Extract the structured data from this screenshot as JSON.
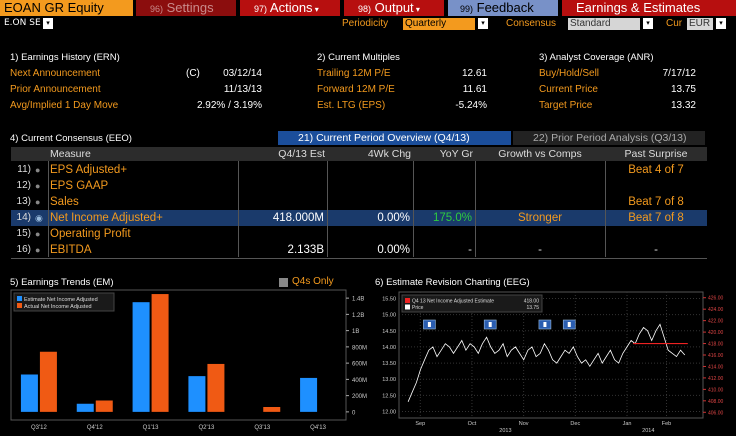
{
  "topbar": {
    "ticker": "EOAN GR Equity",
    "settings_num": "96)",
    "settings": "Settings",
    "actions_num": "97)",
    "actions": "Actions",
    "output_num": "98)",
    "output": "Output",
    "feedback_num": "99)",
    "feedback": "Feedback",
    "earnings": "Earnings & Estimates"
  },
  "row2": {
    "security": "E.ON SE",
    "periodicity_label": "Periodicity",
    "periodicity_value": "Quarterly",
    "consensus_label": "Consensus",
    "consensus_value": "Standard",
    "cur_label": "Cur",
    "cur_value": "EUR"
  },
  "ern": {
    "title": "1) Earnings History (ERN)",
    "rows": [
      {
        "label": "Next Announcement",
        "mark": "(C)",
        "value": "03/12/14"
      },
      {
        "label": "Prior Announcement",
        "mark": "",
        "value": "11/13/13"
      },
      {
        "label": "Avg/Implied 1 Day Move",
        "mark": "",
        "value": "2.92% / 3.19%"
      }
    ]
  },
  "multiples": {
    "title": "2) Current Multiples",
    "rows": [
      {
        "label": "Trailing 12M P/E",
        "value": "12.61"
      },
      {
        "label": "Forward 12M P/E",
        "value": "11.61"
      },
      {
        "label": "Est. LTG (EPS)",
        "value": "-5.24%"
      }
    ]
  },
  "anr": {
    "title": "3) Analyst Coverage (ANR)",
    "rows": [
      {
        "label": "Buy/Hold/Sell",
        "value": "7/17/12"
      },
      {
        "label": "Current Price",
        "value": "13.75"
      },
      {
        "label": "Target Price",
        "value": "13.32"
      }
    ]
  },
  "consensus": {
    "title": "4) Current Consensus (EEO)",
    "tab_active": "21) Current Period Overview (Q4/13)",
    "tab_inactive": "22) Prior Period Analysis (Q3/13)",
    "headers": [
      "Measure",
      "Q4/13 Est",
      "4Wk Chg",
      "YoY Gr",
      "Growth vs Comps",
      "Past Surprise"
    ],
    "rows": [
      {
        "num": "11)",
        "measure": "EPS Adjusted+",
        "est": "",
        "chg": "",
        "yoy": "",
        "growth": "",
        "surprise": "Beat 4 of 7"
      },
      {
        "num": "12)",
        "measure": "EPS GAAP",
        "est": "",
        "chg": "",
        "yoy": "",
        "growth": "",
        "surprise": ""
      },
      {
        "num": "13)",
        "measure": "Sales",
        "est": "",
        "chg": "",
        "yoy": "",
        "growth": "",
        "surprise": "Beat 7 of 8"
      },
      {
        "num": "14)",
        "measure": "Net Income Adjusted+",
        "est": "418.000M",
        "chg": "0.00%",
        "yoy": "175.0%",
        "growth": "Stronger",
        "surprise": "Beat 7 of 8"
      },
      {
        "num": "15)",
        "measure": "Operating Profit",
        "est": "",
        "chg": "",
        "yoy": "",
        "growth": "",
        "surprise": ""
      },
      {
        "num": "16)",
        "measure": "EBITDA",
        "est": "2.133B",
        "chg": "0.00%",
        "yoy": "-",
        "growth": "-",
        "surprise": "-"
      }
    ]
  },
  "trends": {
    "title": "5) Earnings Trends (EM)",
    "q4s_label": "Q4s Only"
  },
  "revision": {
    "title": "6) Estimate Revision Charting (EEG)"
  },
  "chart_data": [
    {
      "type": "bar",
      "categories": [
        "Q3'12",
        "Q4'12",
        "Q1'13",
        "Q2'13",
        "Q3'13",
        "Q4'13"
      ],
      "series": [
        {
          "name": "Estimate Net Income Adjusted",
          "values": [
            460,
            100,
            1350,
            440,
            0,
            418
          ]
        },
        {
          "name": "Actual Net Income Adjusted",
          "values": [
            740,
            140,
            1450,
            590,
            60,
            null
          ]
        }
      ],
      "yticks": [
        "0",
        "200M",
        "400M",
        "600M",
        "800M",
        "1B",
        "1.2B",
        "1.4B"
      ],
      "ylim": [
        -100,
        1500
      ],
      "colors": {
        "estimate": "#1e90ff",
        "actual": "#f05a14"
      }
    },
    {
      "type": "line",
      "legend": [
        {
          "name": "Q4 13 Net Income Adjusted Estimate",
          "value": "418.00"
        },
        {
          "name": "Price",
          "value": "13.75"
        }
      ],
      "xticks": [
        "Sep",
        "Oct",
        "Nov",
        "Dec",
        "Jan",
        "Feb"
      ],
      "years": [
        "2013",
        "2014"
      ],
      "yticks": [
        "12.00",
        "12.50",
        "13.00",
        "13.50",
        "14.00",
        "14.50",
        "15.00",
        "15.50"
      ],
      "right_yticks": [
        "406.00",
        "408.00",
        "410.00",
        "412.00",
        "414.00",
        "416.00",
        "418.00",
        "420.00",
        "422.00",
        "424.00",
        "426.00"
      ],
      "ylim": [
        11.8,
        15.7
      ],
      "right_ylim": [
        405,
        427
      ],
      "price": [
        12.3,
        12.6,
        12.9,
        13.3,
        13.6,
        13.9,
        14.0,
        13.7,
        13.9,
        14.1,
        14.0,
        13.8,
        14.0,
        14.2,
        13.9,
        14.1,
        14.0,
        13.8,
        14.1,
        14.3,
        14.0,
        13.8,
        13.9,
        14.1,
        13.7,
        13.9,
        14.0,
        13.8,
        13.6,
        13.9,
        14.0,
        13.7,
        13.8,
        14.1,
        13.9,
        13.6,
        13.5,
        13.7,
        13.9,
        13.8,
        14.0,
        13.7,
        13.5,
        13.6,
        13.4,
        13.6,
        13.8,
        13.5,
        13.7,
        13.9,
        13.6,
        13.5,
        13.8,
        14.0,
        14.2,
        14.1,
        14.4,
        14.6,
        14.5,
        14.2,
        14.5,
        14.7,
        14.3,
        13.9,
        13.8,
        13.7,
        13.9,
        13.75
      ],
      "estimate": [
        418,
        418
      ]
    }
  ]
}
